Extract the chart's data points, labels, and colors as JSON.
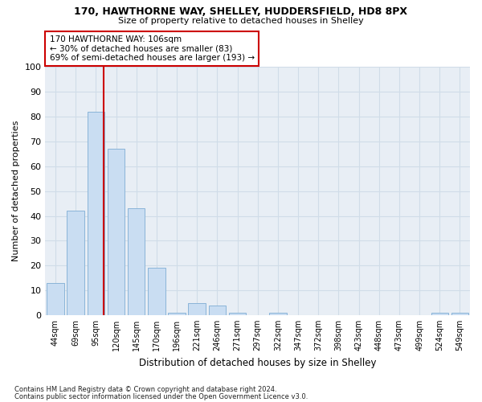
{
  "title1": "170, HAWTHORNE WAY, SHELLEY, HUDDERSFIELD, HD8 8PX",
  "title2": "Size of property relative to detached houses in Shelley",
  "xlabel": "Distribution of detached houses by size in Shelley",
  "ylabel": "Number of detached properties",
  "categories": [
    "44sqm",
    "69sqm",
    "95sqm",
    "120sqm",
    "145sqm",
    "170sqm",
    "196sqm",
    "221sqm",
    "246sqm",
    "271sqm",
    "297sqm",
    "322sqm",
    "347sqm",
    "372sqm",
    "398sqm",
    "423sqm",
    "448sqm",
    "473sqm",
    "499sqm",
    "524sqm",
    "549sqm"
  ],
  "values": [
    13,
    42,
    82,
    67,
    43,
    19,
    1,
    5,
    4,
    1,
    0,
    1,
    0,
    0,
    0,
    0,
    0,
    0,
    0,
    1,
    1
  ],
  "bar_color": "#c9ddf2",
  "bar_edge_color": "#8ab4d8",
  "vline_color": "#cc0000",
  "annotation_text": "170 HAWTHORNE WAY: 106sqm\n← 30% of detached houses are smaller (83)\n69% of semi-detached houses are larger (193) →",
  "annotation_box_color": "#ffffff",
  "annotation_box_edge": "#cc0000",
  "ylim": [
    0,
    100
  ],
  "yticks": [
    0,
    10,
    20,
    30,
    40,
    50,
    60,
    70,
    80,
    90,
    100
  ],
  "footer1": "Contains HM Land Registry data © Crown copyright and database right 2024.",
  "footer2": "Contains public sector information licensed under the Open Government Licence v3.0.",
  "grid_color": "#d0dce8",
  "bg_color": "#e8eef5"
}
